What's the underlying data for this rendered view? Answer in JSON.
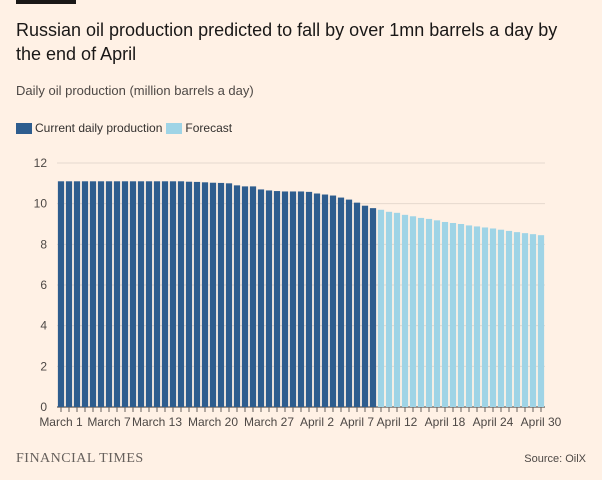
{
  "header": {
    "title": "Russian oil production predicted to fall by over 1mn barrels a day by the end of April",
    "subtitle": "Daily oil production (million barrels a day)"
  },
  "legend": {
    "current_label": "Current daily production",
    "forecast_label": "Forecast",
    "current_color": "#2e5d8e",
    "forecast_color": "#9fd4e6"
  },
  "footer": {
    "brand": "FINANCIAL TIMES",
    "source": "Source: OilX"
  },
  "chart_data": {
    "type": "bar",
    "title": "Russian oil production predicted to fall by over 1mn barrels a day by the end of April",
    "ylabel": "Daily oil production (million barrels a day)",
    "ylim": [
      0,
      12
    ],
    "yticks": [
      0,
      2,
      4,
      6,
      8,
      10,
      12
    ],
    "grid": "horizontal",
    "legend_position": "top-left",
    "xtick_labels": [
      "March 1",
      "March 7",
      "March 13",
      "March 20",
      "March 27",
      "April 2",
      "April 7",
      "April 12",
      "April 18",
      "April 24",
      "April 30"
    ],
    "xtick_index": [
      0,
      6,
      12,
      19,
      26,
      32,
      37,
      42,
      48,
      54,
      60
    ],
    "series": [
      {
        "name": "Current daily production",
        "color": "#2e5d8e",
        "values": [
          11.1,
          11.1,
          11.1,
          11.1,
          11.1,
          11.1,
          11.1,
          11.1,
          11.1,
          11.1,
          11.1,
          11.1,
          11.1,
          11.1,
          11.1,
          11.1,
          11.08,
          11.07,
          11.05,
          11.03,
          11.02,
          11.0,
          10.9,
          10.85,
          10.85,
          10.7,
          10.65,
          10.62,
          10.6,
          10.6,
          10.6,
          10.58,
          10.5,
          10.45,
          10.4,
          10.3,
          10.2,
          10.05,
          9.9,
          9.78
        ]
      },
      {
        "name": "Forecast",
        "color": "#9fd4e6",
        "values": [
          9.7,
          9.6,
          9.55,
          9.45,
          9.38,
          9.3,
          9.25,
          9.18,
          9.1,
          9.05,
          9.0,
          8.93,
          8.88,
          8.83,
          8.78,
          8.72,
          8.66,
          8.6,
          8.55,
          8.5,
          8.45
        ]
      }
    ]
  }
}
